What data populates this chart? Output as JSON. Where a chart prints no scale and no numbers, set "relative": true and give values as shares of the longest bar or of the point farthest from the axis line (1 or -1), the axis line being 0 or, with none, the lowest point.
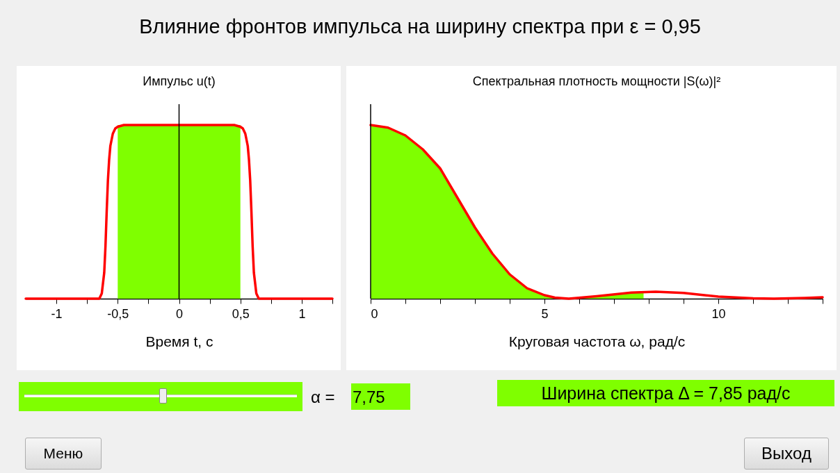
{
  "chart_data": [
    {
      "type": "line",
      "title": "Импульс u(t)",
      "xlabel": "Время t, с",
      "relative": true,
      "xlim": [
        -1.25,
        1.25
      ],
      "xticks": [
        -1,
        {
          "value": -0.75,
          "label": null
        },
        {
          "value": -0.5,
          "label": "-0,5"
        },
        {
          "value": -0.25,
          "label": null
        },
        0,
        {
          "value": 0.25,
          "label": null
        },
        {
          "value": 0.5,
          "label": "0,5"
        },
        {
          "value": 0.75,
          "label": null
        },
        1,
        {
          "value": 1.25,
          "label": null
        }
      ],
      "series": [
        {
          "type": "area",
          "color": "#7fff00",
          "x": [
            -0.5,
            0.5
          ],
          "values": [
            1,
            1
          ]
        },
        {
          "type": "line",
          "color": "#ff0000",
          "x": [
            -1.25,
            -0.65,
            -0.63,
            -0.61,
            -0.6,
            -0.59,
            -0.58,
            -0.57,
            -0.56,
            -0.54,
            -0.52,
            -0.5,
            -0.45,
            0.45,
            0.5,
            0.52,
            0.54,
            0.56,
            0.57,
            0.58,
            0.59,
            0.6,
            0.61,
            0.63,
            0.65,
            1.25
          ],
          "values": [
            0,
            0,
            0.03,
            0.15,
            0.3,
            0.5,
            0.68,
            0.8,
            0.88,
            0.95,
            0.98,
            0.99,
            1,
            1,
            0.99,
            0.98,
            0.95,
            0.88,
            0.8,
            0.68,
            0.5,
            0.3,
            0.15,
            0.03,
            0,
            0
          ]
        }
      ],
      "ref_lines": [
        {
          "axis": "x",
          "value": 0,
          "color": "#000000"
        }
      ],
      "annotations": [
        "Влияние фронтов импульса на ширину спектра при ε = 0,95"
      ]
    },
    {
      "type": "line",
      "title": "Спектральная плотность мощности |S(ω)|²",
      "xlabel": "Круговая частота ω, рад/с",
      "relative": true,
      "xlim": [
        0,
        13
      ],
      "xticks": [
        0,
        {
          "value": 1,
          "label": null
        },
        {
          "value": 2,
          "label": null
        },
        {
          "value": 3,
          "label": null
        },
        {
          "value": 4,
          "label": null
        },
        5,
        {
          "value": 6,
          "label": null
        },
        {
          "value": 7,
          "label": null
        },
        {
          "value": 8,
          "label": null
        },
        {
          "value": 9,
          "label": null
        },
        10,
        {
          "value": 11,
          "label": null
        },
        {
          "value": 12,
          "label": null
        },
        {
          "value": 13,
          "label": null
        }
      ],
      "series": [
        {
          "type": "area",
          "color": "#7fff00",
          "x": [
            0,
            0.5,
            1,
            1.5,
            2,
            2.5,
            3,
            3.5,
            4,
            4.5,
            5,
            5.3,
            5.7,
            6.5,
            7.5,
            7.85
          ],
          "values": [
            1,
            0.985,
            0.94,
            0.86,
            0.75,
            0.58,
            0.41,
            0.26,
            0.14,
            0.06,
            0.02,
            0.006,
            0,
            0.014,
            0.035,
            0.038
          ]
        },
        {
          "type": "line",
          "color": "#ff0000",
          "x": [
            0,
            0.5,
            1,
            1.5,
            2,
            2.5,
            3,
            3.5,
            4,
            4.5,
            5,
            5.3,
            5.7,
            6.5,
            7.5,
            8.2,
            9,
            10,
            11,
            11.6,
            12.5,
            13
          ],
          "values": [
            1,
            0.985,
            0.94,
            0.86,
            0.75,
            0.58,
            0.41,
            0.26,
            0.14,
            0.06,
            0.02,
            0.006,
            0,
            0.014,
            0.035,
            0.04,
            0.033,
            0.012,
            0.002,
            0,
            0.004,
            0.008
          ]
        }
      ],
      "ref_lines": [
        {
          "axis": "x",
          "value": 0,
          "color": "#000000"
        }
      ],
      "annotations": [
        "α =",
        "7,75",
        "Ширина спектра Δ = 7,85 рад/с",
        "Меню",
        "Выход"
      ]
    }
  ]
}
